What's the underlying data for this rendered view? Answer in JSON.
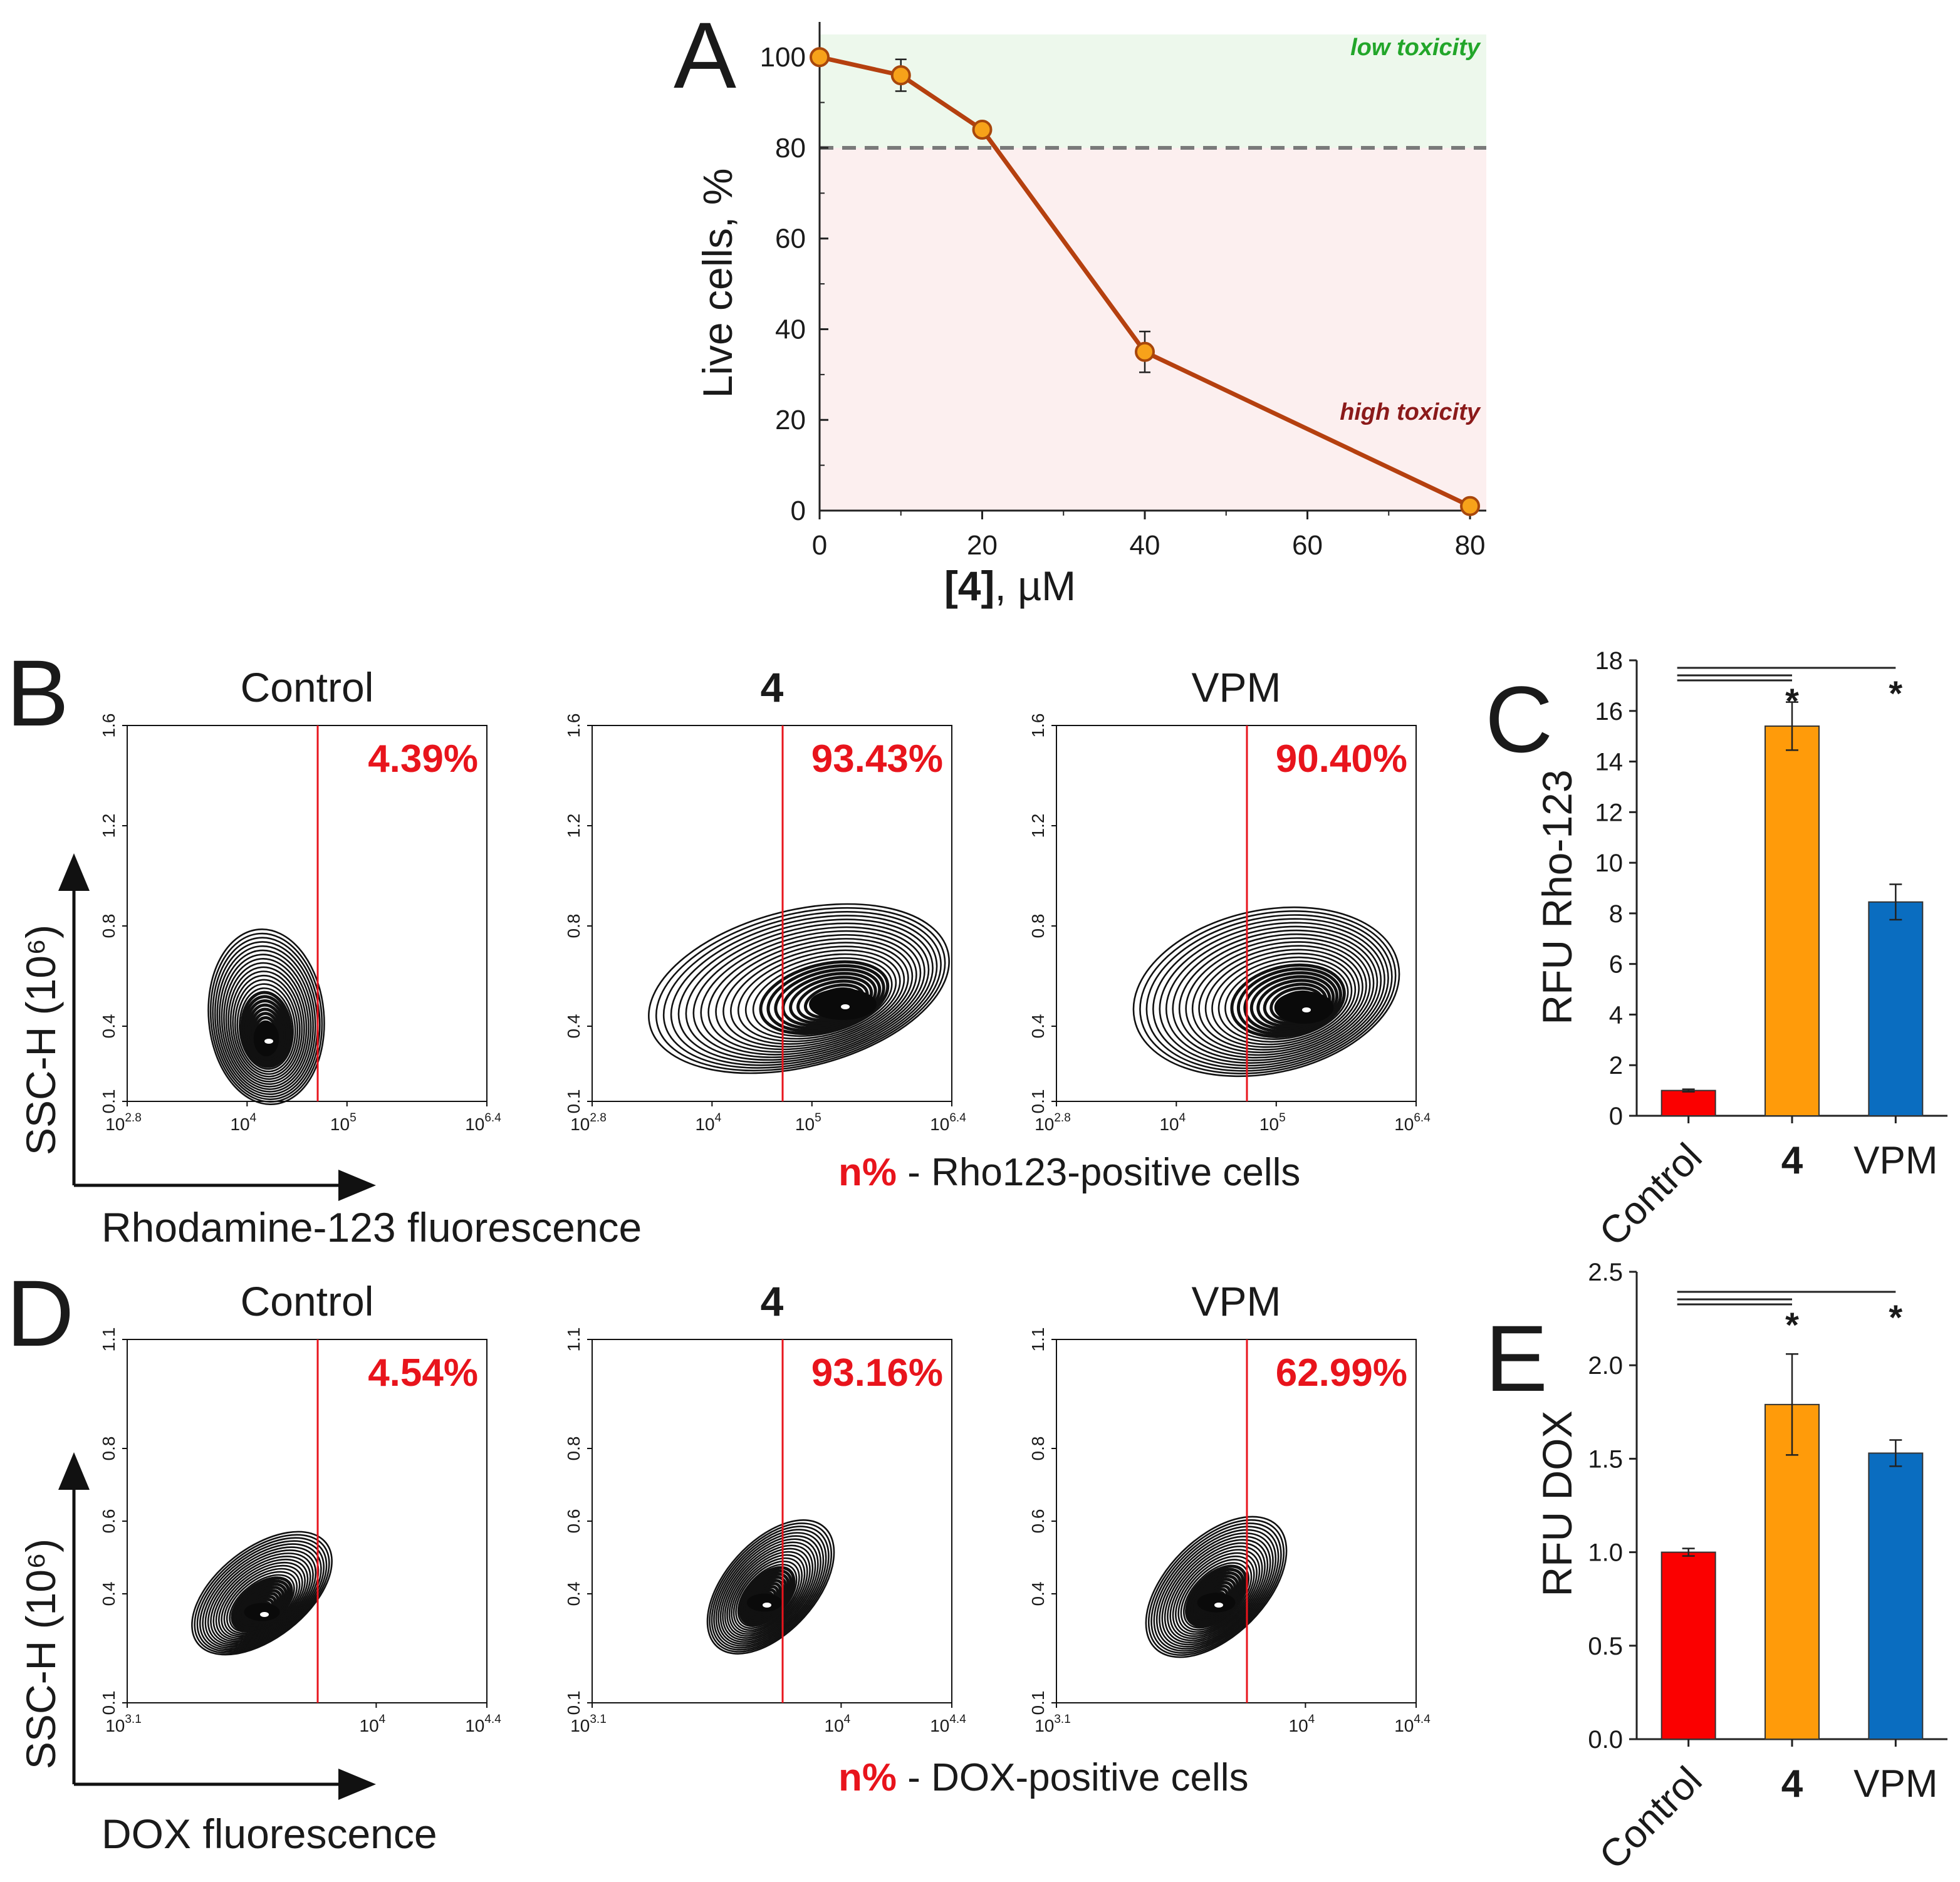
{
  "colors": {
    "line": "#b5400f",
    "marker_fill": "#f7a21a",
    "marker_edge": "#a8470c",
    "low_zone": "#edf8ec",
    "high_zone": "#fcefef",
    "threshold": "#7a7a7a",
    "gate": "#e8141c",
    "control_bar": "#fb0000",
    "compound_bar": "#ff9b0a",
    "vpm_bar": "#0a6dc0"
  },
  "chart_data": [
    {
      "panel": "A",
      "type": "line",
      "title": "",
      "xlabel_bold": "[4]",
      "xlabel_rest": ", µM",
      "ylabel": "Live cells, %",
      "x": [
        0,
        10,
        20,
        40,
        80
      ],
      "y": [
        100,
        96,
        84,
        35,
        1
      ],
      "error": [
        0,
        3.5,
        0,
        4.5,
        0
      ],
      "xlim": [
        0,
        82
      ],
      "ylim": [
        0,
        105
      ],
      "xticks": [
        "0",
        "20",
        "40",
        "60",
        "80"
      ],
      "yticks": [
        "0",
        "20",
        "40",
        "60",
        "80",
        "100"
      ],
      "threshold": 80,
      "zone_labels": {
        "low": "low toxicity",
        "high": "high toxicity"
      }
    },
    {
      "panel": "C",
      "type": "bar",
      "ylabel": "RFU Rho-123",
      "categories": [
        "Control",
        "4",
        "VPM"
      ],
      "values": [
        1.0,
        15.4,
        8.45
      ],
      "error": [
        0.05,
        0.95,
        0.7
      ],
      "ylim": [
        0,
        18
      ],
      "yticks": [
        "0",
        "2",
        "4",
        "6",
        "8",
        "10",
        "12",
        "14",
        "16",
        "18"
      ],
      "significance": "*"
    },
    {
      "panel": "E",
      "type": "bar",
      "ylabel": "RFU DOX",
      "categories": [
        "Control",
        "4",
        "VPM"
      ],
      "values": [
        1.0,
        1.79,
        1.53
      ],
      "error": [
        0.02,
        0.27,
        0.07
      ],
      "ylim": [
        0,
        2.5
      ],
      "yticks": [
        "0.0",
        "0.5",
        "1.0",
        "1.5",
        "2.0",
        "2.5"
      ],
      "significance": "*"
    },
    {
      "panel": "B",
      "type": "contour",
      "panels": [
        "Control",
        "4",
        "VPM"
      ],
      "positive_percent": [
        "4.39%",
        "93.43%",
        "90.40%"
      ],
      "yticks": [
        "0.1",
        "0.4",
        "0.8",
        "1.2",
        "1.6"
      ],
      "xaxis_label": "Rhodamine-123 fluorescence",
      "yaxis_label": "SSC-H (10⁶)",
      "legend_prefix": "n%",
      "legend_rest": " - Rho123-positive cells"
    },
    {
      "panel": "D",
      "type": "contour",
      "panels": [
        "Control",
        "4",
        "VPM"
      ],
      "positive_percent": [
        "4.54%",
        "93.16%",
        "62.99%"
      ],
      "yticks": [
        "0.1",
        "0.4",
        "0.6",
        "0.8",
        "1.1"
      ],
      "xaxis_label": "DOX fluorescence",
      "yaxis_label": "SSC-H (10⁶)",
      "legend_prefix": "n%",
      "legend_rest": " - DOX-positive cells"
    }
  ],
  "labels": {
    "A": "A",
    "B": "B",
    "C": "C",
    "D": "D",
    "E": "E",
    "flow_b_ticks": {
      "base": "10",
      "e1": "2.8",
      "t2": "10",
      "e2": "4",
      "t3": "10",
      "e3": "5",
      "t4": "10",
      "e4": "6.4"
    },
    "flow_d_ticks": {
      "base": "10",
      "e1": "3.1",
      "t2": "10",
      "e2": "4",
      "t3": "10",
      "e3": "4.4"
    },
    "ylabel_sup": "6"
  }
}
